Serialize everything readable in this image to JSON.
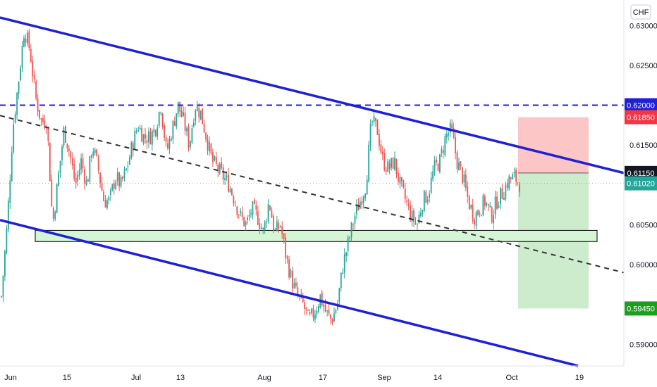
{
  "chart_data": {
    "type": "candlestick",
    "currency": "CHF",
    "y_ticks": [
      "0.63000",
      "0.62500",
      "0.61500",
      "0.60500",
      "0.60000",
      "0.59000"
    ],
    "x_ticks": [
      "Jun",
      "15",
      "Jul",
      "13",
      "Aug",
      "17",
      "Sep",
      "14",
      "Oct",
      "19"
    ],
    "ylim": [
      0.5873,
      0.6332
    ],
    "price_labels": [
      {
        "text": "0.62000",
        "value": 0.62,
        "color": "#1f1fd6"
      },
      {
        "text": "0.61850",
        "value": 0.6185,
        "color": "#f23645"
      },
      {
        "text": "0.61150",
        "value": 0.6115,
        "color": "#131722"
      },
      {
        "text": "0.61020",
        "value": 0.6102,
        "color": "#26a69a"
      },
      {
        "text": "0.59450",
        "value": 0.5945,
        "color": "#1e9e1e"
      }
    ],
    "close_path": [
      0.596,
      0.605,
      0.617,
      0.623,
      0.6295,
      0.627,
      0.621,
      0.618,
      0.618,
      0.605,
      0.611,
      0.617,
      0.614,
      0.61,
      0.613,
      0.61,
      0.615,
      0.612,
      0.608,
      0.608,
      0.611,
      0.61,
      0.612,
      0.615,
      0.6175,
      0.616,
      0.616,
      0.617,
      0.62,
      0.614,
      0.617,
      0.62,
      0.618,
      0.615,
      0.62,
      0.619,
      0.616,
      0.613,
      0.612,
      0.611,
      0.61,
      0.608,
      0.606,
      0.605,
      0.607,
      0.606,
      0.604,
      0.608,
      0.604,
      0.605,
      0.601,
      0.598,
      0.596,
      0.595,
      0.593,
      0.594,
      0.596,
      0.594,
      0.593,
      0.595,
      0.6,
      0.603,
      0.606,
      0.608,
      0.61,
      0.618,
      0.617,
      0.613,
      0.612,
      0.613,
      0.61,
      0.608,
      0.606,
      0.605,
      0.608,
      0.609,
      0.612,
      0.613,
      0.616,
      0.617,
      0.613,
      0.611,
      0.608,
      0.606,
      0.607,
      0.608,
      0.606,
      0.608,
      0.609,
      0.6105,
      0.611,
      0.6102
    ],
    "trendlines": [
      {
        "name": "upper-channel",
        "style": "solid",
        "color": "#1f1fd6",
        "points": [
          [
            0,
            0.631
          ],
          [
            885,
            0.6115
          ]
        ]
      },
      {
        "name": "lower-channel",
        "style": "solid",
        "color": "#1f1fd6",
        "points": [
          [
            0,
            0.6056
          ],
          [
            820,
            0.5873
          ]
        ]
      },
      {
        "name": "mid-trend",
        "style": "dashed",
        "color": "#333333",
        "points": [
          [
            0,
            0.6187
          ],
          [
            885,
            0.599
          ]
        ]
      },
      {
        "name": "horizontal-resistance",
        "style": "dashed",
        "color": "#1f1fd6",
        "points": [
          [
            0,
            0.62
          ],
          [
            885,
            0.62
          ]
        ]
      }
    ],
    "support_zone": {
      "top": 0.6043,
      "bottom": 0.6029,
      "fill": "#d6f5d6",
      "border": "#000000"
    },
    "short_position": {
      "entry": 0.6115,
      "stop": 0.6185,
      "target": 0.5945,
      "loss_fill": "#fcc6c6",
      "profit_fill": "#cdeccd"
    },
    "colors": {
      "up": "#26a69a",
      "down": "#ef5350",
      "grid_bg": "#ffffff"
    }
  }
}
